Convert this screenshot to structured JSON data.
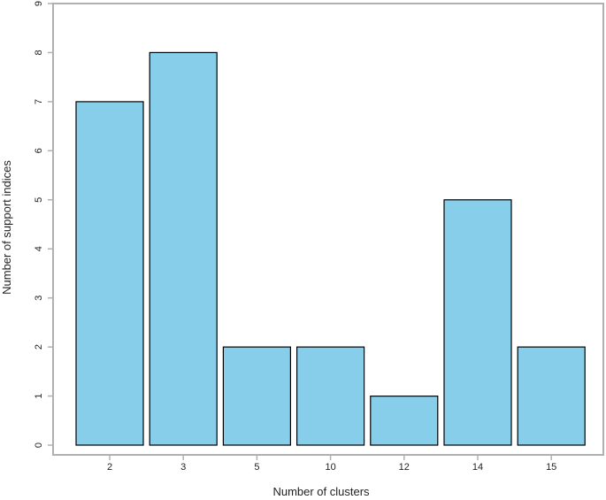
{
  "chart_data": {
    "type": "bar",
    "title": "",
    "xlabel": "Number of clusters",
    "ylabel": "Number of support indices",
    "categories": [
      "2",
      "3",
      "5",
      "10",
      "12",
      "14",
      "15"
    ],
    "values": [
      7,
      8,
      2,
      2,
      1,
      5,
      2
    ],
    "ylim": [
      0,
      9
    ],
    "yticks": [
      0,
      1,
      2,
      3,
      4,
      5,
      6,
      7,
      8,
      9
    ],
    "grid": false,
    "legend": "none",
    "colors": {
      "bar_fill": "#87ceeb",
      "bar_stroke": "#000000",
      "frame": "#b0b0b0",
      "text": "#222222"
    }
  }
}
